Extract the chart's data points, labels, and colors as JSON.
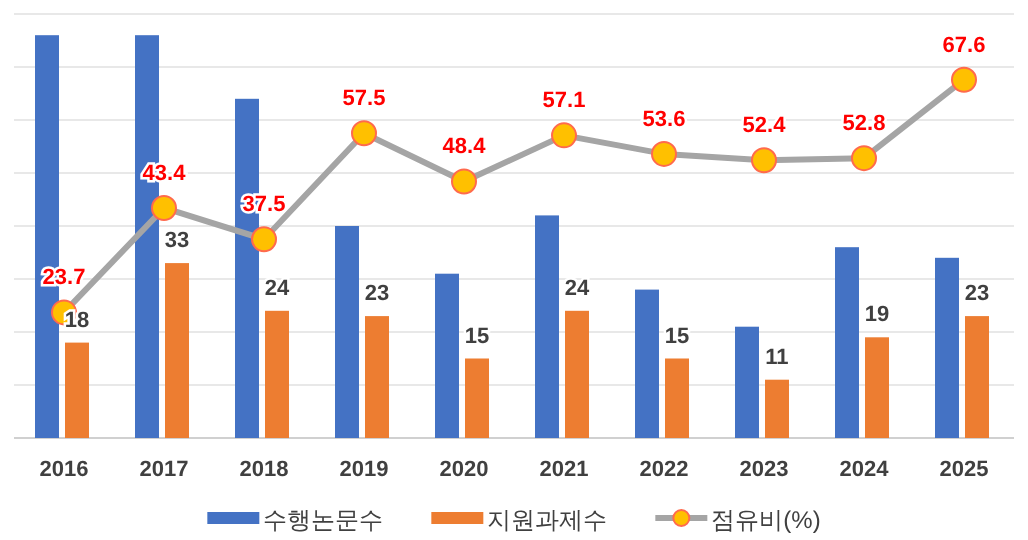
{
  "chart_data": {
    "type": "bar",
    "categories": [
      "2016",
      "2017",
      "2018",
      "2019",
      "2020",
      "2021",
      "2022",
      "2023",
      "2024",
      "2025"
    ],
    "ylim": [
      0,
      80
    ],
    "yticks": [
      {
        "value": 0,
        "label": null
      },
      {
        "value": 10,
        "label": null
      },
      {
        "value": 20,
        "label": null
      },
      {
        "value": 30,
        "label": null
      },
      {
        "value": 40,
        "label": null
      },
      {
        "value": 50,
        "label": null
      },
      {
        "value": 60,
        "label": null
      },
      {
        "value": 70,
        "label": null
      },
      {
        "value": 80,
        "label": null
      }
    ],
    "tick_labels": "x",
    "grid": "y",
    "legend": "bottom",
    "series": [
      {
        "name": "수행논문수",
        "color": "#4472c4",
        "values": [
          76,
          76,
          64,
          40,
          31,
          42,
          28,
          21,
          36,
          34
        ]
      },
      {
        "name": "지원과제수",
        "color": "#ed7d31",
        "values": [
          18,
          33,
          24,
          23,
          15,
          24,
          15,
          11,
          19,
          23
        ],
        "value_labels": [
          "18",
          "33",
          "24",
          "23",
          "15",
          "24",
          "15",
          "11",
          "19",
          "23"
        ]
      },
      {
        "name": "점유비(%)",
        "type": "line",
        "color": "#a5a5a5",
        "marker": "circle",
        "values": [
          23.7,
          43.4,
          37.5,
          57.5,
          48.4,
          57.1,
          53.6,
          52.4,
          52.8,
          67.6
        ],
        "value_labels": [
          "23.7",
          "43.4",
          "37.5",
          "57.5",
          "48.4",
          "57.1",
          "53.6",
          "52.4",
          "52.8",
          "67.6"
        ]
      }
    ]
  }
}
